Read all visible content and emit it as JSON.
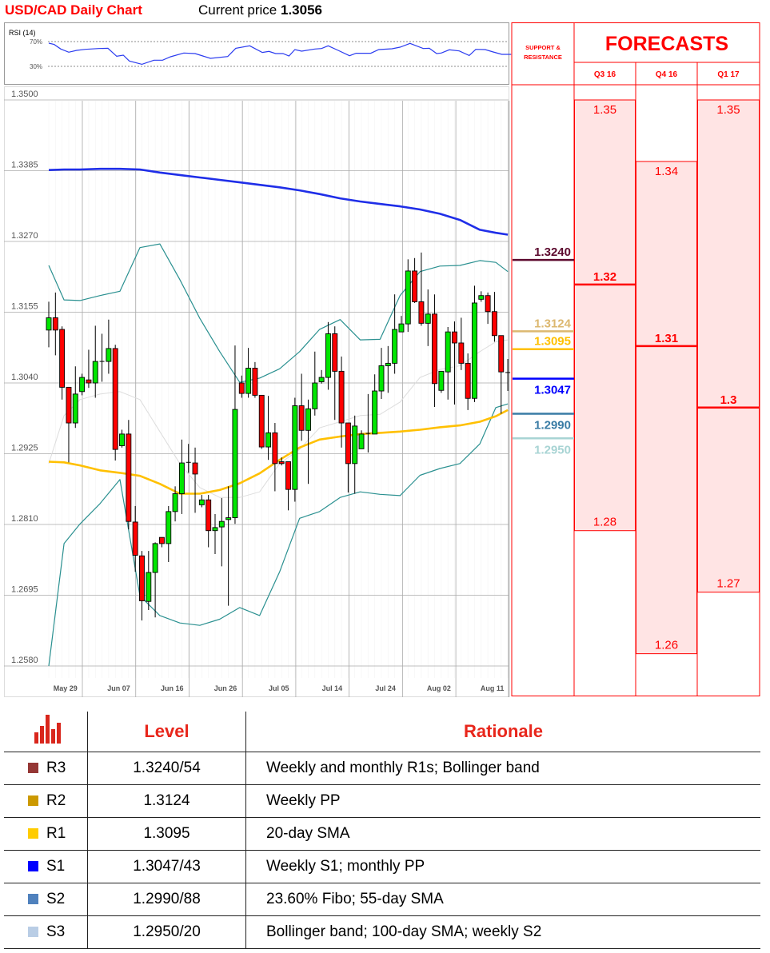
{
  "header": {
    "title": "USD/CAD Daily Chart",
    "price_label": "Current price",
    "price_value": "1.3056"
  },
  "chart_data": {
    "type": "candlestick",
    "title": "USD/CAD Daily Chart",
    "y_ticks": [
      "1.3500",
      "1.3385",
      "1.3270",
      "1.3155",
      "1.3040",
      "1.2925",
      "1.2810",
      "1.2695",
      "1.2580"
    ],
    "ylim": [
      1.258,
      1.35
    ],
    "x_tick_labels": [
      "May 29",
      "Jun 07",
      "Jun 16",
      "Jun 26",
      "Jul 05",
      "Jul 14",
      "Jul 24",
      "Aug 02",
      "Aug 11"
    ],
    "grid": true,
    "colors": {
      "up": "#00e600",
      "down": "#ff0000"
    },
    "candles_ohlc": [
      [
        1.3126,
        1.3172,
        1.3098,
        1.3146
      ],
      [
        1.3146,
        1.3187,
        1.3085,
        1.3126
      ],
      [
        1.3127,
        1.3132,
        1.3013,
        1.3033
      ],
      [
        1.3033,
        1.3033,
        1.2911,
        1.2975
      ],
      [
        1.2975,
        1.3067,
        1.2967,
        1.3022
      ],
      [
        1.3026,
        1.3055,
        1.302,
        1.3049
      ],
      [
        1.3045,
        1.3094,
        1.3032,
        1.304
      ],
      [
        1.304,
        1.3133,
        1.3016,
        1.3075
      ],
      [
        1.3074,
        1.312,
        1.3042,
        1.3075
      ],
      [
        1.3075,
        1.3143,
        1.3055,
        1.3096
      ],
      [
        1.3096,
        1.3102,
        1.2914,
        1.2932
      ],
      [
        1.2938,
        1.2964,
        1.2935,
        1.2957
      ],
      [
        1.2957,
        1.298,
        1.2802,
        1.2815
      ],
      [
        1.2814,
        1.284,
        1.2733,
        1.276
      ],
      [
        1.2759,
        1.2767,
        1.2654,
        1.2686
      ],
      [
        1.2685,
        1.2767,
        1.2671,
        1.2732
      ],
      [
        1.2732,
        1.2781,
        1.2659,
        1.2779
      ],
      [
        1.2789,
        1.2789,
        1.2773,
        1.2779
      ],
      [
        1.2779,
        1.284,
        1.2749,
        1.2831
      ],
      [
        1.2831,
        1.2872,
        1.2815,
        1.286
      ],
      [
        1.286,
        1.2948,
        1.2827,
        1.291
      ],
      [
        1.291,
        1.2941,
        1.2894,
        1.2911
      ],
      [
        1.291,
        1.2935,
        1.2829,
        1.2892
      ],
      [
        1.2842,
        1.2858,
        1.2838,
        1.285
      ],
      [
        1.285,
        1.2858,
        1.2773,
        1.28
      ],
      [
        1.28,
        1.2827,
        1.2762,
        1.2805
      ],
      [
        1.2806,
        1.2853,
        1.2742,
        1.2815
      ],
      [
        1.2818,
        1.2872,
        1.2678,
        1.2821
      ],
      [
        1.2821,
        1.3101,
        1.2811,
        1.2997
      ],
      [
        1.304,
        1.3052,
        1.3016,
        1.3023
      ],
      [
        1.3023,
        1.3097,
        1.3016,
        1.3064
      ],
      [
        1.3064,
        1.3074,
        1.3016,
        1.302
      ],
      [
        1.302,
        1.302,
        1.2933,
        1.2936
      ],
      [
        1.2936,
        1.3019,
        1.2915,
        1.2959
      ],
      [
        1.2959,
        1.2975,
        1.2864,
        1.2909
      ],
      [
        1.2912,
        1.2919,
        1.2906,
        1.2909
      ],
      [
        1.2912,
        1.2912,
        1.2833,
        1.2867
      ],
      [
        1.2867,
        1.3016,
        1.2847,
        1.3003
      ],
      [
        1.3003,
        1.3055,
        1.2946,
        1.2963
      ],
      [
        1.2963,
        1.3013,
        1.2876,
        1.2998
      ],
      [
        1.2998,
        1.3091,
        1.2987,
        1.304
      ],
      [
        1.3042,
        1.3061,
        1.3039,
        1.3049
      ],
      [
        1.3049,
        1.3139,
        1.3029,
        1.312
      ],
      [
        1.312,
        1.3132,
        1.298,
        1.3059
      ],
      [
        1.3059,
        1.3083,
        1.2935,
        1.2975
      ],
      [
        1.2975,
        1.2975,
        1.2862,
        1.2909
      ],
      [
        1.2909,
        1.2987,
        1.286,
        1.297
      ],
      [
        1.2933,
        1.2963,
        1.2933,
        1.2957
      ],
      [
        1.2957,
        1.3022,
        1.2927,
        1.2958
      ],
      [
        1.2957,
        1.3054,
        1.2957,
        1.3027
      ],
      [
        1.3027,
        1.3097,
        1.3014,
        1.3068
      ],
      [
        1.3068,
        1.31,
        1.3024,
        1.3072
      ],
      [
        1.3072,
        1.3184,
        1.3055,
        1.3127
      ],
      [
        1.3123,
        1.3149,
        1.3123,
        1.3136
      ],
      [
        1.3136,
        1.3241,
        1.3123,
        1.3222
      ],
      [
        1.3222,
        1.3243,
        1.317,
        1.3172
      ],
      [
        1.3172,
        1.3252,
        1.3133,
        1.3137
      ],
      [
        1.3137,
        1.3192,
        1.31,
        1.3152
      ],
      [
        1.3152,
        1.3184,
        1.3001,
        1.3039
      ],
      [
        1.3028,
        1.3059,
        1.3024,
        1.3059
      ],
      [
        1.3058,
        1.3131,
        1.3013,
        1.3123
      ],
      [
        1.3123,
        1.314,
        1.3005,
        1.3105
      ],
      [
        1.3105,
        1.3146,
        1.3061,
        1.3072
      ],
      [
        1.3072,
        1.3088,
        1.2996,
        1.3015
      ],
      [
        1.3015,
        1.3198,
        1.3009,
        1.317
      ],
      [
        1.3176,
        1.3189,
        1.3172,
        1.3182
      ],
      [
        1.3182,
        1.3187,
        1.3136,
        1.3156
      ],
      [
        1.3156,
        1.3188,
        1.3107,
        1.3117
      ],
      [
        1.3117,
        1.3117,
        1.299,
        1.3058
      ],
      [
        1.3057,
        1.3079,
        1.3027,
        1.3056
      ]
    ],
    "overlay_x_candle": [
      0,
      2.3,
      4.7,
      7.7,
      10.7,
      13.7,
      16.7,
      19.7,
      22.7,
      25.7,
      28.7,
      31.7,
      34.7,
      37.7,
      40.7,
      43.8,
      46.8,
      49.8,
      52.8,
      55.8,
      58.8,
      61.8,
      64.8,
      67.2,
      69
    ],
    "overlays": [
      {
        "color": "#dddddd",
        "values": [
          1.2909,
          1.2987,
          1.3013,
          1.3022,
          1.3026,
          1.3013,
          1.2961,
          1.2909,
          1.287,
          1.2854,
          1.2854,
          1.2863,
          1.2909,
          1.2932,
          1.2967,
          1.2977,
          1.2987,
          1.2989,
          1.3009,
          1.3049,
          1.3062,
          1.3068,
          1.3091,
          1.3107,
          1.311
        ]
      },
      {
        "color": "#2a9090",
        "values": [
          1.3231,
          1.3175,
          1.3174,
          1.3182,
          1.3189,
          1.326,
          1.3266,
          1.3208,
          1.3145,
          1.3091,
          1.3041,
          1.3048,
          1.3063,
          1.3091,
          1.3127,
          1.3143,
          1.311,
          1.3111,
          1.3182,
          1.3221,
          1.323,
          1.3231,
          1.3239,
          1.3236,
          1.3221
        ]
      },
      {
        "color": "#2a9090",
        "values": [
          1.258,
          1.2779,
          1.2811,
          1.2844,
          1.2883,
          1.2694,
          1.2662,
          1.265,
          1.2646,
          1.2656,
          1.2675,
          1.2662,
          1.2733,
          1.282,
          1.2831,
          1.2854,
          1.2863,
          1.2859,
          1.2857,
          1.289,
          1.2901,
          1.2909,
          1.2941,
          1.3,
          1.3006
        ]
      },
      {
        "color": "#ffc000",
        "values": [
          1.2912,
          1.2911,
          1.2906,
          1.2898,
          1.2894,
          1.2889,
          1.2876,
          1.286,
          1.286,
          1.2866,
          1.2877,
          1.2893,
          1.2915,
          1.2935,
          1.2948,
          1.2953,
          1.2957,
          1.2959,
          1.2961,
          1.2964,
          1.2968,
          1.2971,
          1.2977,
          1.2986,
          1.2996
        ]
      },
      {
        "color": "#1f2ee8",
        "values": [
          1.3386,
          1.3387,
          1.3387,
          1.3388,
          1.3388,
          1.3387,
          1.3382,
          1.3378,
          1.3374,
          1.337,
          1.3366,
          1.3362,
          1.3358,
          1.3353,
          1.3347,
          1.334,
          1.3335,
          1.3331,
          1.3327,
          1.3322,
          1.3315,
          1.3305,
          1.3289,
          1.3284,
          1.3281
        ]
      }
    ],
    "rsi": {
      "label": "RSI (14)",
      "levels": [
        "70%",
        "30%"
      ],
      "color": "#2b3cf0",
      "x_candle": [
        0,
        0.8,
        1.8,
        3,
        4.2,
        5.5,
        7.5,
        8.9,
        10.2,
        11.2,
        12.1,
        14,
        15.8,
        17.1,
        18.3,
        20.3,
        22,
        24.3,
        26.9,
        28.1,
        30.2,
        32.1,
        33.1,
        34.1,
        35.2,
        36.1,
        37,
        38,
        40,
        41,
        42,
        43.5,
        45.2,
        46.2,
        48.4,
        49.6,
        51.6,
        52.8,
        54.3,
        56.3,
        57.2,
        58.3,
        59,
        60.2,
        61.7,
        63.2,
        64.2,
        65.6,
        66.8,
        68.1,
        69.5
      ],
      "values": [
        67.4,
        65.3,
        58,
        52.8,
        55.8,
        57.5,
        58.8,
        59.2,
        46.3,
        48,
        38.6,
        33.4,
        39.9,
        39.9,
        45.5,
        51.5,
        50.6,
        42.9,
        45.9,
        59.2,
        63.1,
        52.4,
        54.1,
        50.6,
        50.6,
        46.8,
        57.1,
        54.5,
        58,
        58.8,
        63.1,
        55.8,
        47.2,
        51.1,
        51.1,
        57.1,
        58.4,
        61,
        67,
        58.8,
        59.2,
        50.6,
        51.5,
        56.7,
        54.9,
        47.6,
        57.5,
        57.1,
        53.2,
        49.4,
        49.4
      ]
    },
    "support_resistance": {
      "header": "SUPPORT & RESISTANCE",
      "levels": [
        {
          "value": "1.3240",
          "color": "#5c0a2e",
          "side": "above"
        },
        {
          "value": "1.3124",
          "color": "#dcb870",
          "side": "above"
        },
        {
          "value": "1.3095",
          "color": "#ffc000",
          "side": "above"
        },
        {
          "value": "1.3047",
          "color": "#0000ff",
          "side": "below"
        },
        {
          "value": "1.2990",
          "color": "#3a7ca5",
          "side": "below"
        },
        {
          "value": "1.2950",
          "color": "#a8d4d4",
          "side": "below"
        }
      ]
    },
    "forecasts": {
      "title": "FORECASTS",
      "color": "#ff0000",
      "fill": "#ffe4e4",
      "columns": [
        {
          "quarter": "Q3 16",
          "high": "1.35",
          "mid": "1.32",
          "low": "1.28"
        },
        {
          "quarter": "Q4 16",
          "high": "1.34",
          "mid": "1.31",
          "low": "1.26"
        },
        {
          "quarter": "Q1 17",
          "high": "1.35",
          "mid": "1.3",
          "low": "1.27"
        }
      ]
    }
  },
  "table": {
    "icon": "bar-chart-icon",
    "headers": {
      "level": "Level",
      "rationale": "Rationale"
    },
    "rows": [
      {
        "code": "R3",
        "color": "#953735",
        "level": "1.3240/54",
        "rationale": "Weekly and monthly R1s; Bollinger band"
      },
      {
        "code": "R2",
        "color": "#cc9900",
        "level": "1.3124",
        "rationale": "Weekly PP"
      },
      {
        "code": "R1",
        "color": "#ffcc00",
        "level": "1.3095",
        "rationale": "20-day SMA"
      },
      {
        "code": "S1",
        "color": "#0000ff",
        "level": "1.3047/43",
        "rationale": "Weekly S1; monthly PP"
      },
      {
        "code": "S2",
        "color": "#4f81bd",
        "level": "1.2990/88",
        "rationale": "23.60% Fibo; 55-day SMA"
      },
      {
        "code": "S3",
        "color": "#b9cde5",
        "level": "1.2950/20",
        "rationale": "Bollinger band; 100-day SMA; weekly S2"
      }
    ]
  }
}
